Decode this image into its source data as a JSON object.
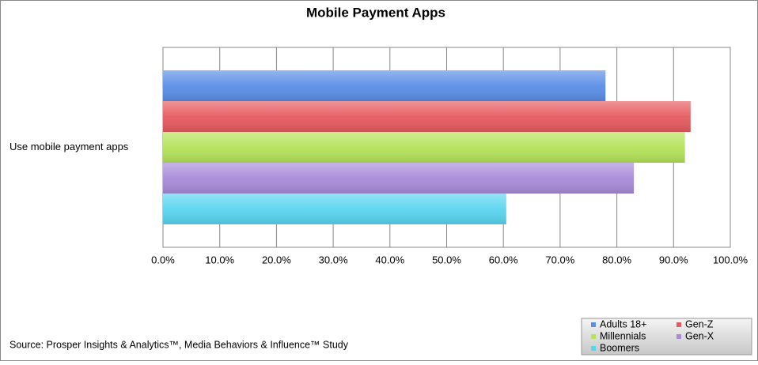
{
  "chart_data": {
    "type": "hbar",
    "title": "Mobile Payment Apps",
    "categories": [
      "Use mobile payment apps"
    ],
    "series": [
      {
        "name": "Adults 18+",
        "color": "#5b8ee6",
        "values": [
          78
        ]
      },
      {
        "name": "Gen-Z",
        "color": "#e65a5f",
        "values": [
          93
        ]
      },
      {
        "name": "Millennials",
        "color": "#b5e35a",
        "values": [
          92
        ]
      },
      {
        "name": "Gen-X",
        "color": "#a98bd9",
        "values": [
          83
        ]
      },
      {
        "name": "Boomers",
        "color": "#5ad5f0",
        "values": [
          60.5
        ]
      }
    ],
    "xlim": [
      0,
      100
    ],
    "xticks": [
      {
        "value": 0,
        "label": "0.0%"
      },
      {
        "value": 10,
        "label": "10.0%"
      },
      {
        "value": 20,
        "label": "20.0%"
      },
      {
        "value": 30,
        "label": "30.0%"
      },
      {
        "value": 40,
        "label": "40.0%"
      },
      {
        "value": 50,
        "label": "50.0%"
      },
      {
        "value": 60,
        "label": "60.0%"
      },
      {
        "value": 70,
        "label": "70.0%"
      },
      {
        "value": 80,
        "label": "80.0%"
      },
      {
        "value": 90,
        "label": "90.0%"
      },
      {
        "value": 100,
        "label": "100.0%"
      }
    ],
    "grid": true,
    "legend": "bottom-right",
    "source": "Source: Prosper Insights & Analytics™, Media Behaviors & Influence™ Study"
  }
}
